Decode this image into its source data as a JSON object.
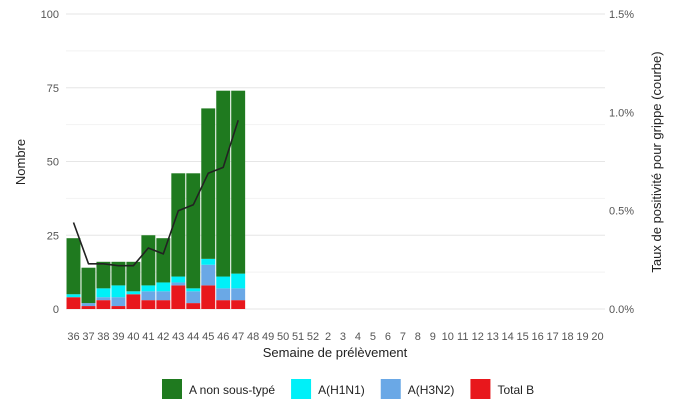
{
  "chart_data": {
    "type": "bar",
    "stacked": true,
    "xlabel": "Semaine de prélèvement",
    "ylabel": "Nombre",
    "y2label": "Taux de positivité pour grippe (courbe)",
    "ylim": [
      0,
      100
    ],
    "yticks": [
      0,
      25,
      50,
      75,
      100
    ],
    "y2lim": [
      0,
      1.5
    ],
    "y2ticks": [
      "0.0%",
      "0.5%",
      "1.0%",
      "1.5%"
    ],
    "grid": true,
    "legend_position": "bottom",
    "categories": [
      "36",
      "37",
      "38",
      "39",
      "40",
      "41",
      "42",
      "43",
      "44",
      "45",
      "46",
      "47",
      "48",
      "49",
      "50",
      "51",
      "52",
      "2",
      "3",
      "4",
      "5",
      "6",
      "7",
      "8",
      "9",
      "10",
      "11",
      "12",
      "13",
      "14",
      "15",
      "16",
      "17",
      "18",
      "19",
      "20"
    ],
    "series": [
      {
        "name": "Total B",
        "color": "#E8171C",
        "values": [
          4,
          1,
          3,
          1,
          5,
          3,
          3,
          8,
          2,
          8,
          3,
          3,
          null,
          null,
          null,
          null,
          null,
          null,
          null,
          null,
          null,
          null,
          null,
          null,
          null,
          null,
          null,
          null,
          null,
          null,
          null,
          null,
          null,
          null,
          null,
          null
        ]
      },
      {
        "name": "A(H3N2)",
        "color": "#6AA8E6",
        "values": [
          0,
          1,
          1,
          3,
          0,
          3,
          3,
          1,
          4,
          7,
          4,
          4,
          null,
          null,
          null,
          null,
          null,
          null,
          null,
          null,
          null,
          null,
          null,
          null,
          null,
          null,
          null,
          null,
          null,
          null,
          null,
          null,
          null,
          null,
          null,
          null
        ]
      },
      {
        "name": "A(H1N1)",
        "color": "#00F0F8",
        "values": [
          1,
          0,
          3,
          4,
          1,
          2,
          3,
          2,
          1,
          2,
          4,
          5,
          null,
          null,
          null,
          null,
          null,
          null,
          null,
          null,
          null,
          null,
          null,
          null,
          null,
          null,
          null,
          null,
          null,
          null,
          null,
          null,
          null,
          null,
          null,
          null
        ]
      },
      {
        "name": "A non sous-typé",
        "color": "#1F7A1F",
        "values": [
          19,
          12,
          9,
          8,
          10,
          17,
          15,
          35,
          39,
          51,
          63,
          62,
          null,
          null,
          null,
          null,
          null,
          null,
          null,
          null,
          null,
          null,
          null,
          null,
          null,
          null,
          null,
          null,
          null,
          null,
          null,
          null,
          null,
          null,
          null,
          null
        ]
      }
    ],
    "line": {
      "color": "#222222",
      "values": [
        0.44,
        0.23,
        0.23,
        0.22,
        0.22,
        0.31,
        0.28,
        0.5,
        0.53,
        0.69,
        0.72,
        0.96,
        null,
        null,
        null,
        null,
        null,
        null,
        null,
        null,
        null,
        null,
        null,
        null,
        null,
        null,
        null,
        null,
        null,
        null,
        null,
        null,
        null,
        null,
        null,
        null
      ]
    },
    "legend_order": [
      "A non sous-typé",
      "A(H1N1)",
      "A(H3N2)",
      "Total B"
    ]
  }
}
